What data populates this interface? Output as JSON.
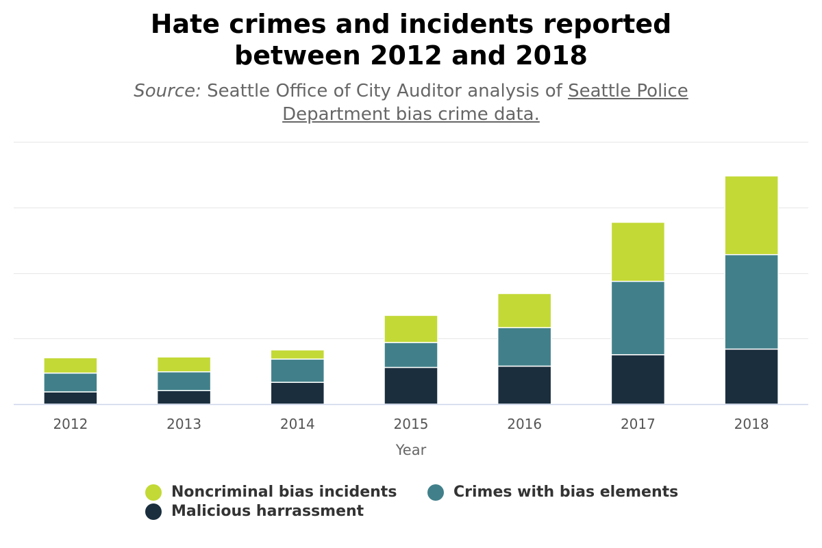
{
  "title_lines": [
    "Hate crimes and incidents reported",
    "between 2012 and 2018"
  ],
  "subtitle": {
    "source_label": "Source:",
    "text": " Seattle Office of City Auditor analysis of ",
    "link_text_1": "Seattle Police",
    "link_text_2": "Department bias crime data."
  },
  "chart_data": {
    "type": "bar",
    "stacked": true,
    "categories": [
      "2012",
      "2013",
      "2014",
      "2015",
      "2016",
      "2017",
      "2018"
    ],
    "xlabel": "Year",
    "ylabel": "",
    "ylim": [
      0,
      600
    ],
    "grid": true,
    "legend_position": "bottom",
    "series": [
      {
        "name": "Malicious harrassment",
        "color": "#1a2e3e",
        "values": [
          28,
          31,
          50,
          84,
          87,
          113,
          126
        ]
      },
      {
        "name": "Crimes with bias elements",
        "color": "#41808a",
        "values": [
          43,
          43,
          53,
          57,
          88,
          168,
          216
        ]
      },
      {
        "name": "Noncriminal bias incidents",
        "color": "#c3d936",
        "values": [
          35,
          34,
          21,
          62,
          78,
          135,
          180
        ]
      }
    ]
  },
  "legend": [
    {
      "label": "Noncriminal bias incidents",
      "color": "#c3d936"
    },
    {
      "label": "Crimes with bias elements",
      "color": "#41808a"
    },
    {
      "label": "Malicious harrassment",
      "color": "#1a2e3e"
    }
  ]
}
